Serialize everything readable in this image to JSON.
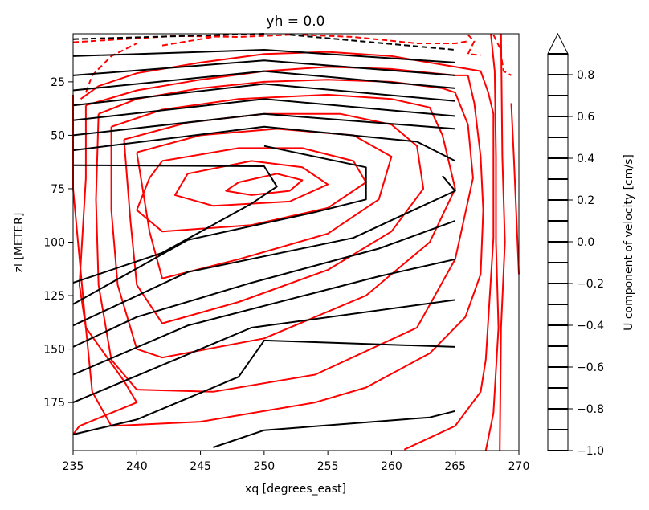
{
  "chart_data": {
    "type": "contour",
    "title": "yh = 0.0",
    "xlabel": "xq [degrees_east]",
    "ylabel": "zl [METER]",
    "xlim": [
      235,
      270
    ],
    "ylim": [
      197.5,
      2.5
    ],
    "x_ticks": [
      235,
      240,
      245,
      250,
      255,
      260,
      265,
      270
    ],
    "y_ticks": [
      25,
      50,
      75,
      100,
      125,
      150,
      175
    ],
    "colorbar": {
      "label": "U component of velocity [cm/s]",
      "range": [
        -1.0,
        0.9
      ],
      "extend": "max",
      "ticks": [
        "0.8",
        "0.6",
        "0.4",
        "0.2",
        "0.0",
        "−0.2",
        "−0.4",
        "−0.6",
        "−0.8",
        "−1.0"
      ],
      "tick_values": [
        0.8,
        0.6,
        0.4,
        0.2,
        0.0,
        -0.2,
        -0.4,
        -0.6,
        -0.8,
        -1.0
      ],
      "level_values": [
        0.9,
        0.8,
        0.7,
        0.6,
        0.5,
        0.4,
        0.3,
        0.2,
        0.1,
        0.0,
        -0.1,
        -0.2,
        -0.3,
        -0.4,
        -0.5,
        -0.6,
        -0.7,
        -0.8,
        -0.9,
        -1.0
      ]
    },
    "colors": {
      "overlay": "#ff0000",
      "contours": "#000000"
    },
    "black_contours": [
      {
        "style": "dashed",
        "points": [
          [
            235,
            5
          ],
          [
            250,
            2.5
          ]
        ]
      },
      {
        "style": "dashed",
        "points": [
          [
            252,
            3
          ],
          [
            265,
            10
          ]
        ]
      },
      {
        "style": "solid",
        "points": [
          [
            235,
            13
          ],
          [
            250,
            10
          ],
          [
            265,
            16
          ]
        ]
      },
      {
        "style": "solid",
        "points": [
          [
            235,
            22
          ],
          [
            250,
            15
          ],
          [
            265,
            22
          ]
        ]
      },
      {
        "style": "solid",
        "points": [
          [
            235,
            29
          ],
          [
            250,
            20
          ],
          [
            265,
            28
          ]
        ]
      },
      {
        "style": "solid",
        "points": [
          [
            235,
            36
          ],
          [
            250,
            26
          ],
          [
            265,
            34
          ]
        ]
      },
      {
        "style": "solid",
        "points": [
          [
            235,
            43
          ],
          [
            250,
            33
          ],
          [
            265,
            41
          ]
        ]
      },
      {
        "style": "solid",
        "points": [
          [
            235,
            50
          ],
          [
            250,
            40
          ],
          [
            265,
            47
          ]
        ]
      },
      {
        "style": "solid",
        "points": [
          [
            235,
            57
          ],
          [
            250,
            46
          ],
          [
            262,
            53
          ],
          [
            265,
            62
          ]
        ]
      },
      {
        "style": "solid",
        "points": [
          [
            235,
            64
          ],
          [
            250,
            64.5
          ],
          [
            251,
            74
          ],
          [
            249,
            82
          ],
          [
            242,
            105
          ],
          [
            235,
            119
          ]
        ]
      },
      {
        "style": "solid",
        "points": [
          [
            250,
            55
          ],
          [
            258,
            65
          ],
          [
            258,
            80
          ],
          [
            254,
            86
          ],
          [
            244,
            99
          ],
          [
            235,
            129
          ]
        ]
      },
      {
        "style": "solid",
        "points": [
          [
            264,
            69
          ],
          [
            265,
            76
          ],
          [
            257,
            98
          ],
          [
            244,
            114
          ],
          [
            235,
            139
          ]
        ]
      },
      {
        "style": "solid",
        "points": [
          [
            235,
            149
          ],
          [
            240,
            135
          ],
          [
            249,
            119
          ],
          [
            259,
            103
          ],
          [
            265,
            90
          ]
        ]
      },
      {
        "style": "solid",
        "points": [
          [
            235,
            162
          ],
          [
            244,
            139
          ],
          [
            259,
            116
          ],
          [
            265,
            108
          ]
        ]
      },
      {
        "style": "solid",
        "points": [
          [
            235,
            175
          ],
          [
            249,
            140
          ],
          [
            265,
            127
          ]
        ]
      },
      {
        "style": "solid",
        "points": [
          [
            235,
            190
          ],
          [
            240,
            183
          ],
          [
            248,
            163
          ],
          [
            250,
            146
          ],
          [
            265,
            149
          ]
        ]
      },
      {
        "style": "solid",
        "points": [
          [
            246,
            196
          ],
          [
            250,
            188
          ],
          [
            263,
            182
          ],
          [
            265,
            179
          ]
        ]
      }
    ],
    "red_contours": [
      {
        "style": "dashed",
        "points": [
          [
            235,
            6.5
          ],
          [
            243,
            3.5
          ],
          [
            248,
            4
          ],
          [
            252,
            3
          ]
        ]
      },
      {
        "style": "dashed",
        "points": [
          [
            242,
            8
          ],
          [
            245,
            5
          ],
          [
            247,
            3
          ]
        ]
      },
      {
        "style": "dashed",
        "points": [
          [
            236,
            30
          ],
          [
            236.5,
            22
          ],
          [
            238,
            13
          ],
          [
            240,
            7
          ]
        ]
      },
      {
        "style": "dashed",
        "points": [
          [
            253,
            3
          ],
          [
            257,
            4
          ],
          [
            262,
            7
          ],
          [
            265,
            7
          ],
          [
            266,
            6
          ]
        ]
      },
      {
        "style": "dashed",
        "points": [
          [
            266,
            3
          ],
          [
            266.5,
            6
          ],
          [
            266,
            12
          ],
          [
            267,
            12.5
          ]
        ]
      },
      {
        "style": "dashed",
        "points": [
          [
            268,
            3
          ],
          [
            268.5,
            9
          ],
          [
            268.8,
            20
          ],
          [
            269.4,
            22
          ]
        ]
      },
      {
        "style": "solid",
        "points": [
          [
            235,
            31
          ],
          [
            235,
            75
          ],
          [
            236,
            140
          ],
          [
            239,
            165
          ],
          [
            240,
            175
          ],
          [
            235.5,
            186
          ],
          [
            235,
            190
          ]
        ]
      },
      {
        "style": "solid",
        "points": [
          [
            235.6,
            33
          ],
          [
            237,
            27
          ],
          [
            240,
            21
          ],
          [
            245,
            16
          ],
          [
            250,
            12
          ],
          [
            255,
            11
          ],
          [
            260,
            13
          ],
          [
            264,
            17
          ],
          [
            266,
            19
          ],
          [
            267,
            20
          ],
          [
            267.6,
            30
          ],
          [
            268,
            40
          ],
          [
            268,
            60
          ],
          [
            268,
            98
          ],
          [
            267.4,
            155
          ],
          [
            267,
            170
          ],
          [
            265,
            186
          ],
          [
            261,
            197
          ]
        ]
      },
      {
        "style": "solid",
        "points": [
          [
            236,
            36
          ],
          [
            240,
            29
          ],
          [
            245,
            24
          ],
          [
            250,
            20
          ],
          [
            255,
            18
          ],
          [
            260,
            19
          ],
          [
            265,
            22
          ],
          [
            266,
            22
          ],
          [
            266.5,
            35
          ],
          [
            267,
            60
          ],
          [
            267.2,
            85
          ],
          [
            267,
            115
          ],
          [
            265.8,
            135
          ],
          [
            263,
            152
          ],
          [
            258,
            168
          ],
          [
            254,
            175
          ],
          [
            245,
            184
          ],
          [
            238,
            186
          ],
          [
            236.5,
            170
          ],
          [
            236,
            140
          ],
          [
            235.5,
            120
          ],
          [
            236,
            70
          ],
          [
            236,
            36
          ]
        ]
      },
      {
        "style": "solid",
        "points": [
          [
            237,
            40
          ],
          [
            240,
            33
          ],
          [
            245,
            28
          ],
          [
            250,
            25
          ],
          [
            255,
            24
          ],
          [
            260,
            25
          ],
          [
            264,
            28
          ],
          [
            265,
            30
          ],
          [
            266,
            45
          ],
          [
            266.4,
            70
          ],
          [
            265,
            108
          ],
          [
            262,
            140
          ],
          [
            254,
            162
          ],
          [
            246,
            170
          ],
          [
            240,
            169
          ],
          [
            238,
            155
          ],
          [
            237,
            120
          ],
          [
            236.8,
            80
          ],
          [
            237,
            40
          ]
        ]
      },
      {
        "style": "solid",
        "points": [
          [
            238,
            46
          ],
          [
            242,
            38
          ],
          [
            248,
            33
          ],
          [
            255,
            31
          ],
          [
            260,
            33
          ],
          [
            263,
            37
          ],
          [
            264,
            50
          ],
          [
            265,
            75
          ],
          [
            263,
            100
          ],
          [
            258,
            125
          ],
          [
            250,
            145
          ],
          [
            242,
            154
          ],
          [
            240,
            150
          ],
          [
            238.5,
            120
          ],
          [
            238,
            85
          ],
          [
            238,
            46
          ]
        ]
      },
      {
        "style": "solid",
        "points": [
          [
            239,
            52
          ],
          [
            244,
            44
          ],
          [
            250,
            40
          ],
          [
            256,
            40
          ],
          [
            260,
            45
          ],
          [
            262,
            55
          ],
          [
            262.5,
            75
          ],
          [
            260,
            95
          ],
          [
            255,
            113
          ],
          [
            248,
            128
          ],
          [
            242,
            138
          ],
          [
            240,
            120
          ],
          [
            239.5,
            90
          ],
          [
            239,
            52
          ]
        ]
      },
      {
        "style": "solid",
        "points": [
          [
            240,
            58
          ],
          [
            245,
            50
          ],
          [
            251,
            47
          ],
          [
            257,
            50
          ],
          [
            260,
            60
          ],
          [
            259,
            80
          ],
          [
            255,
            96
          ],
          [
            248,
            108
          ],
          [
            242,
            117
          ],
          [
            241,
            95
          ],
          [
            240,
            58
          ]
        ]
      },
      {
        "style": "solid",
        "points": [
          [
            242,
            62
          ],
          [
            248,
            56
          ],
          [
            253,
            56
          ],
          [
            257,
            62
          ],
          [
            258,
            72
          ],
          [
            255,
            84
          ],
          [
            249,
            92
          ],
          [
            242,
            95
          ],
          [
            240,
            85
          ],
          [
            241,
            70
          ],
          [
            242,
            62
          ]
        ]
      },
      {
        "style": "solid",
        "points": [
          [
            244,
            68
          ],
          [
            249,
            62
          ],
          [
            253,
            65
          ],
          [
            255,
            73
          ],
          [
            252,
            81
          ],
          [
            246,
            83
          ],
          [
            243,
            78
          ],
          [
            244,
            68
          ]
        ]
      },
      {
        "style": "solid",
        "points": [
          [
            248,
            72
          ],
          [
            251,
            68
          ],
          [
            253,
            71
          ],
          [
            252,
            76
          ],
          [
            249,
            78
          ],
          [
            247,
            76
          ],
          [
            248,
            72
          ]
        ]
      },
      {
        "style": "solid",
        "points": [
          [
            267.8,
            2.5
          ],
          [
            268.1,
            20
          ],
          [
            268.2,
            60
          ],
          [
            268.2,
            100
          ],
          [
            268.4,
            140
          ],
          [
            268,
            180
          ],
          [
            267.4,
            197.5
          ]
        ]
      },
      {
        "style": "solid",
        "points": [
          [
            268.6,
            2.5
          ],
          [
            268.7,
            60
          ],
          [
            268.9,
            100
          ],
          [
            268.6,
            140
          ],
          [
            268.5,
            197.5
          ]
        ]
      },
      {
        "style": "solid",
        "points": [
          [
            269.4,
            35
          ],
          [
            269.6,
            60
          ],
          [
            270,
            115
          ]
        ]
      }
    ]
  }
}
